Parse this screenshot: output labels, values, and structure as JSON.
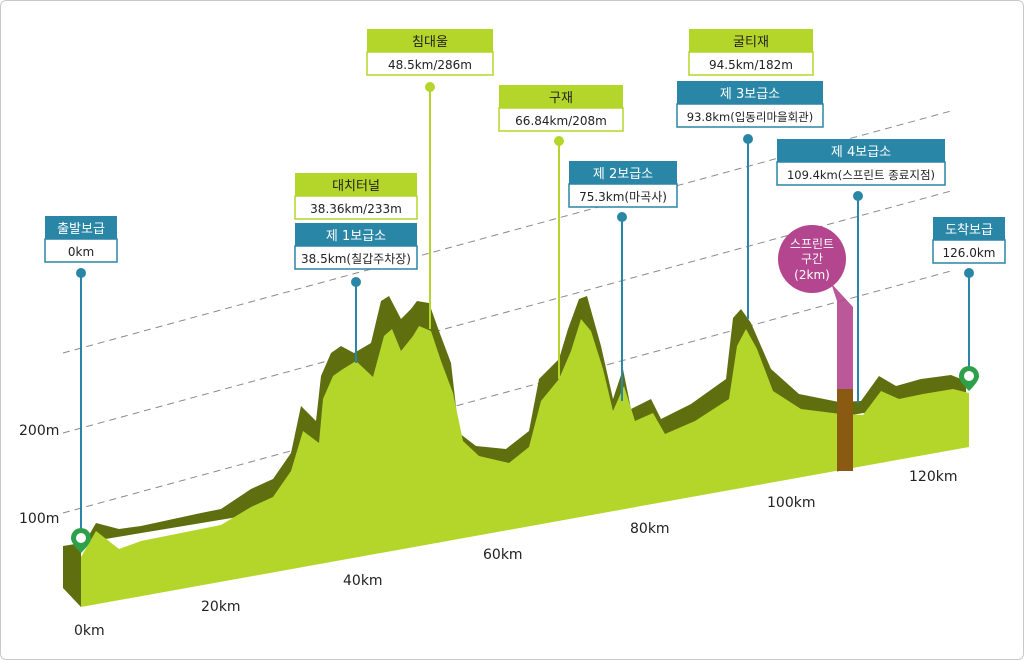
{
  "axis": {
    "y_ticks": [
      "100m",
      "200m"
    ],
    "x_ticks": [
      "0km",
      "20km",
      "40km",
      "60km",
      "80km",
      "100km",
      "120km"
    ]
  },
  "markers": {
    "start": {
      "title": "출발보급",
      "sub": "0km"
    },
    "sup1": {
      "title": "제 1보급소",
      "sub": "38.5km(칠갑주차장)"
    },
    "tunnel": {
      "title": "대치터널",
      "sub": "38.36km/233m"
    },
    "chimdae": {
      "title": "침대울",
      "sub": "48.5km/286m"
    },
    "guje": {
      "title": "구재",
      "sub": "66.84km/208m"
    },
    "sup2": {
      "title": "제 2보급소",
      "sub": "75.3km(마곡사)"
    },
    "gulti": {
      "title": "굴티재",
      "sub": "94.5km/182m"
    },
    "sup3": {
      "title": "제 3보급소",
      "sub": "93.8km(입동리마을회관)"
    },
    "sup4": {
      "title": "제 4보급소",
      "sub": "109.4km(스프린트 종료지점)"
    },
    "finish": {
      "title": "도착보급",
      "sub": "126.0km"
    }
  },
  "sprint": {
    "line1": "스프린트",
    "line2": "구간",
    "line3": "(2km)"
  },
  "colors": {
    "terrain_top": "#b4d62a",
    "terrain_side": "#5f6f10",
    "supply": "#2a86a6",
    "peak": "#b4d62a",
    "sprint": "#b3468e",
    "start_pin": "#2fa04a"
  }
}
